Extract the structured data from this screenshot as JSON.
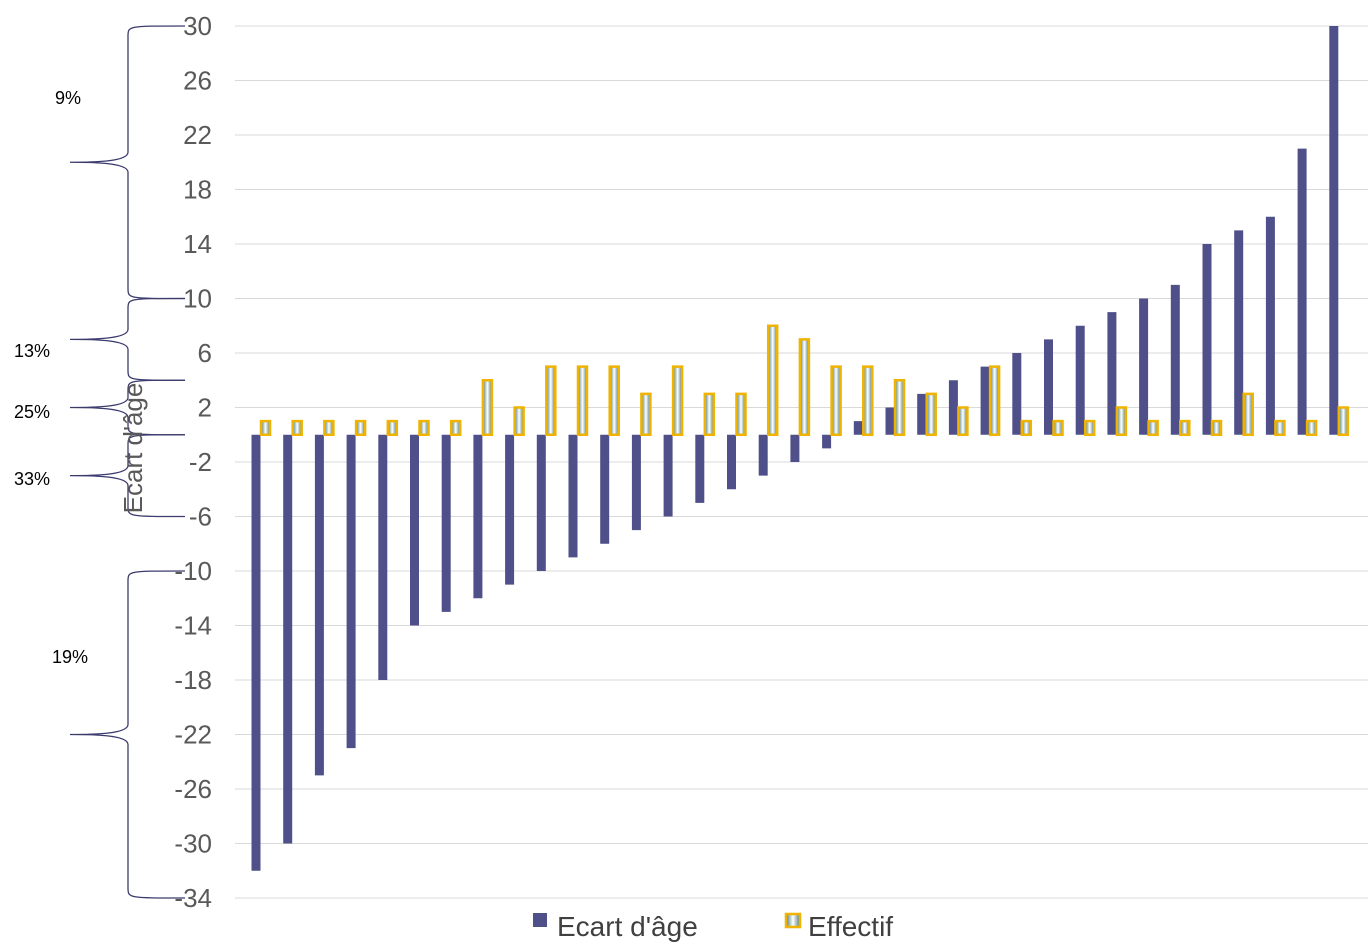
{
  "chart_data": {
    "type": "bar",
    "ylabel": "Ecart d'âge",
    "ylim": [
      -34,
      30
    ],
    "yticks": [
      30,
      26,
      22,
      18,
      14,
      10,
      6,
      2,
      -2,
      -6,
      -10,
      -14,
      -18,
      -22,
      -26,
      -30,
      -34
    ],
    "grid": true,
    "legend_position": "bottom",
    "series": [
      {
        "name": "Ecart d'âge",
        "color": "#4f4f89",
        "values": [
          -32,
          -30,
          -25,
          -23,
          -18,
          -14,
          -13,
          -12,
          -11,
          -10,
          -9,
          -8,
          -7,
          -6,
          -5,
          -4,
          -3,
          -2,
          -1,
          1,
          2,
          3,
          4,
          5,
          6,
          7,
          8,
          9,
          10,
          11,
          14,
          15,
          16,
          21,
          30
        ]
      },
      {
        "name": "Effectif",
        "color": "#f0b400",
        "fill_gradient": [
          "#4a7a80",
          "#ffffff"
        ],
        "values": [
          1,
          1,
          1,
          1,
          1,
          1,
          1,
          4,
          2,
          5,
          5,
          5,
          3,
          5,
          3,
          3,
          8,
          7,
          5,
          5,
          4,
          3,
          2,
          5,
          1,
          1,
          1,
          2,
          1,
          1,
          1,
          3,
          1,
          1,
          2
        ]
      }
    ],
    "annotations": [
      {
        "label": "9%",
        "range": [
          10,
          30
        ]
      },
      {
        "label": "13%",
        "range": [
          4,
          10
        ]
      },
      {
        "label": "25%",
        "range": [
          0,
          4
        ]
      },
      {
        "label": "33%",
        "range": [
          -6,
          0
        ]
      },
      {
        "label": "19%",
        "range": [
          -34,
          -10
        ]
      }
    ]
  }
}
